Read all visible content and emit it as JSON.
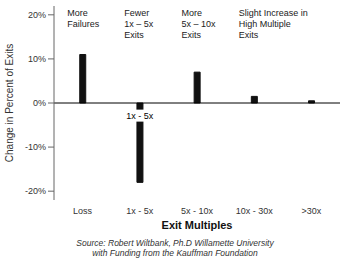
{
  "chart_data": {
    "type": "bar",
    "categories": [
      "Loss",
      "1x - 5x",
      "5x - 10x",
      "10x - 30x",
      ">30x"
    ],
    "values": [
      11.0,
      -18.0,
      7.0,
      1.5,
      0.5
    ],
    "color": "#111111",
    "ylim": [
      -22,
      22
    ],
    "yticks": [
      {
        "value": -20,
        "label": "-20%"
      },
      {
        "value": -10,
        "label": "-10%"
      },
      {
        "value": 0,
        "label": "0%"
      },
      {
        "value": 10,
        "label": "10%"
      },
      {
        "value": 20,
        "label": "20%"
      }
    ],
    "xlabel": "Exit Multiples",
    "ylabel": "Change in Percent of Exits",
    "annotations": [
      {
        "text": "More\nFailures",
        "category": "Loss"
      },
      {
        "text": "Fewer\n1x – 5x\nExits",
        "category": "1x - 5x"
      },
      {
        "text": "More\n5x – 10x\nExits",
        "category": "5x - 10x"
      },
      {
        "text": "Slight Increase in\nHigh Multiple\nExits",
        "category": "10x - 30x"
      }
    ],
    "inner_label": {
      "text": "1x - 5x",
      "category": "1x - 5x"
    },
    "source": "Source: Robert Wiltbank, Ph.D Willamette University\nwith Funding from the Kauffman Foundation",
    "grid": false
  }
}
